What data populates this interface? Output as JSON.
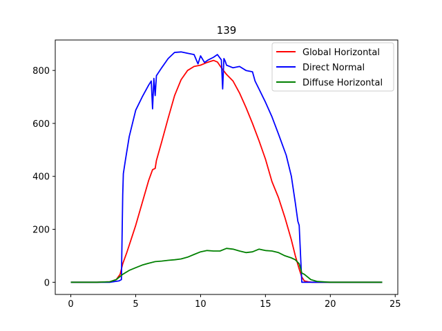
{
  "chart_data": {
    "type": "line",
    "title": "139",
    "xlabel": "",
    "ylabel": "",
    "xlim": [
      -1.2,
      25.2
    ],
    "ylim": [
      -46,
      915
    ],
    "xticks": [
      0,
      5,
      10,
      15,
      20,
      25
    ],
    "yticks": [
      0,
      200,
      400,
      600,
      800
    ],
    "grid": false,
    "legend_position": "top-right",
    "series": [
      {
        "name": "Global Horizontal",
        "color": "#ff0000",
        "x": [
          0,
          1,
          2,
          3,
          3.5,
          3.8,
          4,
          4.3,
          4.6,
          5,
          5.5,
          6,
          6.3,
          6.5,
          6.6,
          7,
          7.5,
          8,
          8.5,
          9,
          9.5,
          10,
          10.5,
          11,
          11.3,
          11.6,
          12,
          12.5,
          13,
          13.5,
          14,
          14.5,
          15,
          15.5,
          16,
          16.5,
          17,
          17.3,
          17.6,
          17.8,
          18,
          18.3,
          18.6,
          19,
          20,
          21,
          22,
          23,
          24
        ],
        "y": [
          0,
          0,
          0,
          2,
          10,
          30,
          70,
          110,
          155,
          215,
          300,
          385,
          425,
          430,
          460,
          530,
          620,
          705,
          765,
          800,
          815,
          820,
          830,
          838,
          832,
          810,
          785,
          760,
          715,
          660,
          600,
          535,
          465,
          380,
          320,
          245,
          160,
          100,
          50,
          20,
          5,
          2,
          0,
          0,
          0,
          0,
          0,
          0,
          0
        ]
      },
      {
        "name": "Direct Normal",
        "color": "#0000ff",
        "x": [
          0,
          1,
          2,
          3,
          3.7,
          3.9,
          4,
          4.05,
          4.2,
          4.5,
          5,
          5.5,
          6,
          6.2,
          6.3,
          6.4,
          6.5,
          6.6,
          7,
          7.5,
          8,
          8.5,
          9,
          9.5,
          9.8,
          10,
          10.3,
          10.6,
          11,
          11.3,
          11.6,
          11.7,
          11.8,
          11.9,
          12,
          12.5,
          13,
          13.5,
          14,
          14.2,
          14.5,
          15,
          15.5,
          16,
          16.3,
          16.6,
          17,
          17.3,
          17.5,
          17.6,
          17.8,
          18,
          19,
          20,
          21,
          22,
          23,
          24
        ],
        "y": [
          0,
          0,
          0,
          0,
          5,
          10,
          330,
          410,
          460,
          550,
          650,
          700,
          745,
          760,
          655,
          770,
          705,
          780,
          810,
          845,
          868,
          870,
          865,
          860,
          825,
          855,
          830,
          840,
          850,
          860,
          840,
          730,
          845,
          835,
          820,
          810,
          815,
          800,
          795,
          760,
          730,
          680,
          625,
          560,
          520,
          480,
          400,
          300,
          230,
          215,
          0,
          0,
          0,
          0,
          0,
          0,
          0,
          0
        ]
      },
      {
        "name": "Diffuse Horizontal",
        "color": "#008000",
        "x": [
          0,
          1,
          2,
          3,
          3.5,
          4,
          4.5,
          5,
          5.5,
          6,
          6.5,
          7,
          7.5,
          8,
          8.5,
          9,
          9.5,
          10,
          10.5,
          11,
          11.5,
          12,
          12.5,
          13,
          13.5,
          14,
          14.5,
          15,
          15.5,
          16,
          16.5,
          17,
          17.3,
          17.6,
          17.8,
          18,
          18.5,
          19,
          20,
          21,
          22,
          23,
          24
        ],
        "y": [
          0,
          0,
          0,
          2,
          10,
          30,
          45,
          55,
          65,
          72,
          78,
          80,
          83,
          85,
          88,
          95,
          105,
          115,
          120,
          118,
          118,
          128,
          125,
          118,
          112,
          115,
          125,
          120,
          118,
          112,
          100,
          92,
          85,
          70,
          35,
          30,
          10,
          3,
          0,
          0,
          0,
          0,
          0
        ]
      }
    ]
  }
}
